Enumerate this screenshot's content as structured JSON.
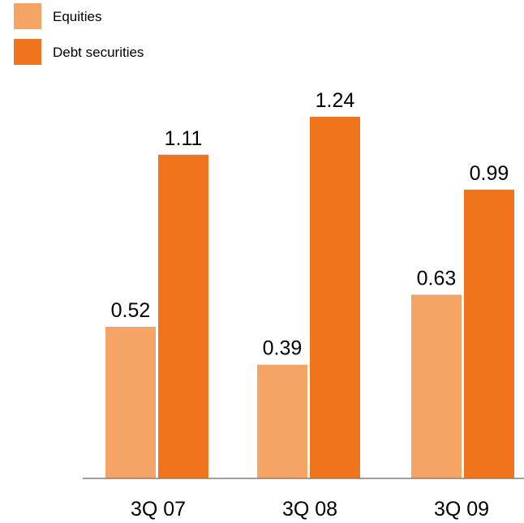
{
  "chart_data": {
    "type": "bar",
    "categories": [
      "3Q 07",
      "3Q 08",
      "3Q 09"
    ],
    "series": [
      {
        "name": "Equities",
        "values": [
          0.52,
          0.39,
          0.63
        ],
        "color": "#f6a366"
      },
      {
        "name": "Debt securities",
        "values": [
          1.11,
          1.24,
          0.99
        ],
        "color": "#f0731e"
      }
    ],
    "data_labels": [
      [
        "0.52",
        "0.39",
        "0.63"
      ],
      [
        "1.11",
        "1.24",
        "0.99"
      ]
    ],
    "ylim": [
      0,
      1.24
    ],
    "grid": false,
    "legend_position": "top-left",
    "axis_color": "#808080"
  }
}
